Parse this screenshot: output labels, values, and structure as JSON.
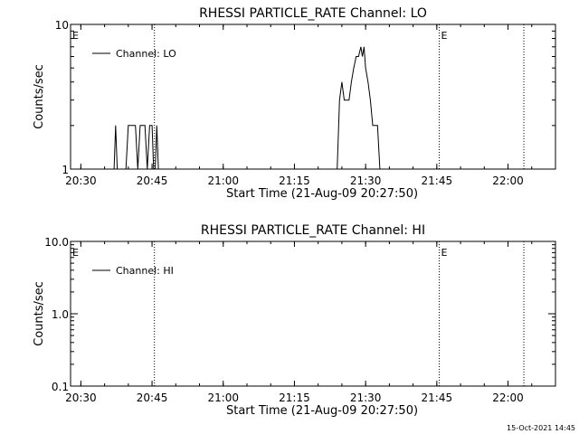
{
  "footer_timestamp": "15-Oct-2021 14:45",
  "chart_data": [
    {
      "type": "line",
      "title": "RHESSI PARTICLE_RATE Channel: LO",
      "xlabel": "Start Time (21-Aug-09 20:27:50)",
      "ylabel": "Counts/sec",
      "y_scale": "log",
      "ylim": [
        1,
        10
      ],
      "y_ticks": [
        {
          "value": 1,
          "label": "1"
        },
        {
          "value": 10,
          "label": "10"
        }
      ],
      "xlim": [
        "20:27:50",
        "22:10:00"
      ],
      "x_ticks": [
        "20:30",
        "20:45",
        "21:00",
        "21:15",
        "21:30",
        "21:45",
        "22:00"
      ],
      "legend": {
        "label": "Channel: LO",
        "position": "top-left"
      },
      "markers": [
        {
          "time": "20:27:50",
          "label": "E"
        },
        {
          "time": "20:45:30",
          "label": ""
        },
        {
          "time": "21:45:30",
          "label": "E"
        },
        {
          "time": "22:03:20",
          "label": ""
        }
      ],
      "series": [
        {
          "name": "Channel: LO",
          "segments": [
            {
              "x": [
                "20:37:00",
                "20:37:20",
                "20:37:40"
              ],
              "y": [
                1,
                2,
                1
              ]
            },
            {
              "x": [
                "20:39:30",
                "20:40:00",
                "20:41:30",
                "20:42:00",
                "20:42:30",
                "20:43:30",
                "20:44:00",
                "20:44:30",
                "20:45:00",
                "20:45:20"
              ],
              "y": [
                1,
                2,
                2,
                1,
                2,
                2,
                1,
                2,
                2,
                1
              ]
            },
            {
              "x": [
                "20:45:40",
                "20:46:00",
                "20:46:20"
              ],
              "y": [
                1,
                2,
                1
              ]
            },
            {
              "x": [
                "21:24:00",
                "21:24:30",
                "21:25:00",
                "21:25:30",
                "21:26:30",
                "21:27:00",
                "21:27:30",
                "21:28:00",
                "21:28:30",
                "21:29:00",
                "21:29:20",
                "21:29:40",
                "21:30:00",
                "21:30:30",
                "21:31:00",
                "21:31:30",
                "21:32:00",
                "21:32:30",
                "21:33:00"
              ],
              "y": [
                1,
                3,
                4,
                3,
                3,
                4,
                5,
                6,
                6,
                7,
                6,
                7,
                5,
                4,
                3,
                2,
                2,
                2,
                1
              ]
            }
          ]
        }
      ]
    },
    {
      "type": "line",
      "title": "RHESSI PARTICLE_RATE Channel: HI",
      "xlabel": "Start Time (21-Aug-09 20:27:50)",
      "ylabel": "Counts/sec",
      "y_scale": "log",
      "ylim": [
        0.1,
        10
      ],
      "y_ticks": [
        {
          "value": 0.1,
          "label": "0.1"
        },
        {
          "value": 1,
          "label": "1.0"
        },
        {
          "value": 10,
          "label": "10.0"
        }
      ],
      "xlim": [
        "20:27:50",
        "22:10:00"
      ],
      "x_ticks": [
        "20:30",
        "20:45",
        "21:00",
        "21:15",
        "21:30",
        "21:45",
        "22:00"
      ],
      "legend": {
        "label": "Channel: HI",
        "position": "top-left"
      },
      "markers": [
        {
          "time": "20:27:50",
          "label": "E"
        },
        {
          "time": "20:45:30",
          "label": ""
        },
        {
          "time": "21:45:30",
          "label": "E"
        },
        {
          "time": "22:03:20",
          "label": ""
        }
      ],
      "series": [
        {
          "name": "Channel: HI",
          "segments": []
        }
      ]
    }
  ]
}
